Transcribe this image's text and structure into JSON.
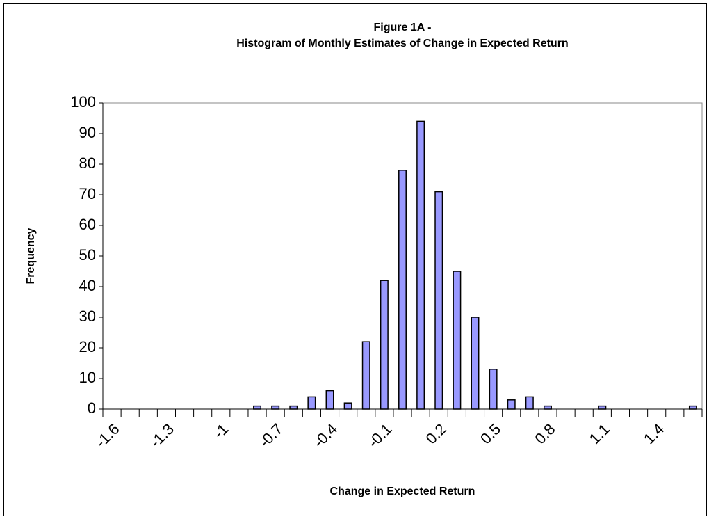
{
  "chart_data": {
    "type": "bar",
    "title": [
      "Figure 1A -",
      "Histogram of Monthly Estimates of Change in Expected Return"
    ],
    "x_label": "Change in Expected Return",
    "y_label": "Frequency",
    "categories": [
      "-1.6",
      null,
      null,
      "-1.3",
      null,
      null,
      "-1",
      null,
      null,
      "-0.7",
      null,
      null,
      "-0.4",
      null,
      null,
      "-0.1",
      null,
      null,
      "0.2",
      null,
      null,
      "0.5",
      null,
      null,
      "0.8",
      null,
      null,
      "1.1",
      null,
      null,
      "1.4",
      null,
      null
    ],
    "values": [
      0,
      0,
      0,
      0,
      0,
      0,
      0,
      0,
      1,
      1,
      1,
      4,
      6,
      2,
      22,
      42,
      78,
      94,
      71,
      45,
      30,
      13,
      3,
      4,
      1,
      0,
      0,
      1,
      0,
      0,
      0,
      0,
      1
    ],
    "color": "#9999ff",
    "ylim": [
      0,
      100
    ],
    "yticks": [
      0,
      10,
      20,
      30,
      40,
      50,
      60,
      70,
      80,
      90,
      100
    ]
  }
}
